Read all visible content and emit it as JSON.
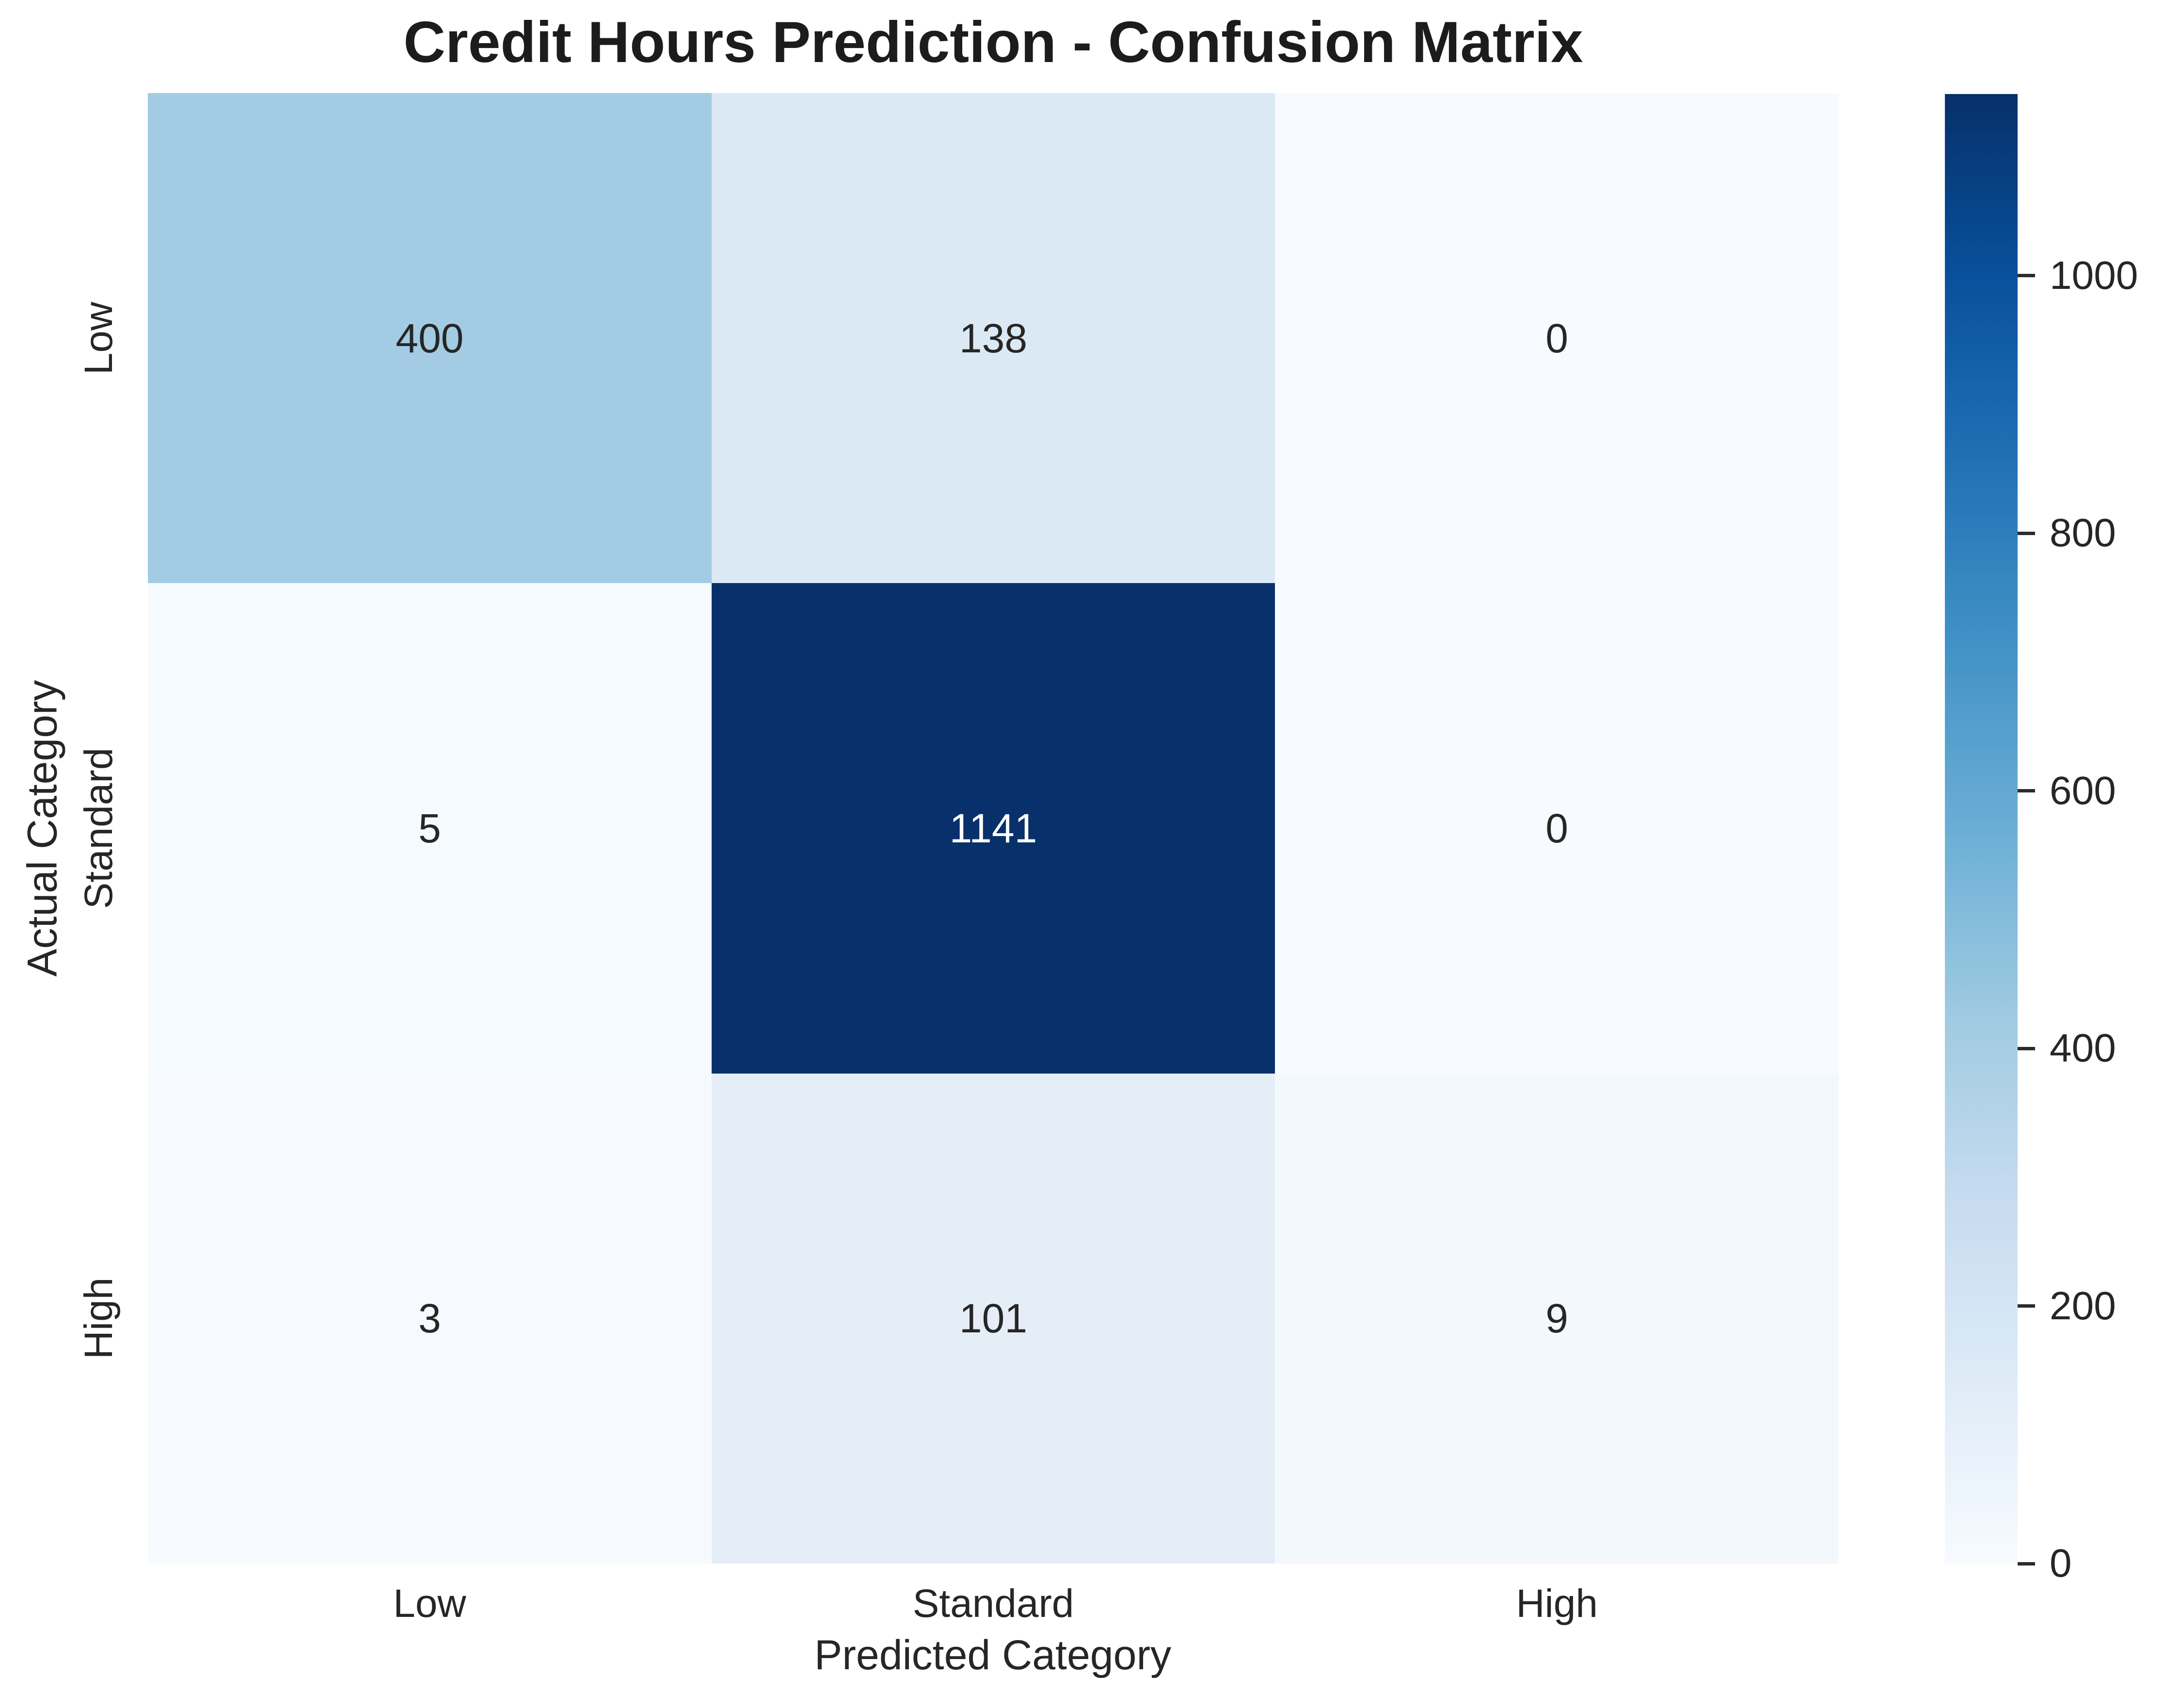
{
  "chart_data": {
    "type": "heatmap",
    "title": "Credit Hours Prediction - Confusion Matrix",
    "xlabel": "Predicted Category",
    "ylabel": "Actual Category",
    "x_categories": [
      "Low",
      "Standard",
      "High"
    ],
    "y_categories": [
      "Low",
      "Standard",
      "High"
    ],
    "matrix": [
      [
        400,
        138,
        0
      ],
      [
        5,
        1141,
        0
      ],
      [
        3,
        101,
        9
      ]
    ],
    "vmin": 0,
    "vmax": 1141,
    "colormap": "Blues",
    "legend_position": "right-colorbar",
    "grid": false,
    "colorbar_ticks": [
      0,
      200,
      400,
      600,
      800,
      1000
    ],
    "cell_colors": [
      [
        "#a3cbe3",
        "#dbe9f5",
        "#f7fbff"
      ],
      [
        "#f5fafe",
        "#08306b",
        "#f7fbff"
      ],
      [
        "#f6fafe",
        "#e5eef7",
        "#f3f8fd"
      ]
    ],
    "cell_text_colors": [
      [
        "#262626",
        "#262626",
        "#262626"
      ],
      [
        "#262626",
        "#ffffff",
        "#262626"
      ],
      [
        "#262626",
        "#262626",
        "#262626"
      ]
    ],
    "colorbar_gradient_top_to_bottom": [
      "#08306b",
      "#08519c",
      "#2171b5",
      "#4292c6",
      "#6baed6",
      "#9ecae1",
      "#c6dbef",
      "#deebf7",
      "#f7fbff"
    ],
    "text_color": "#262626",
    "title_color": "#1c1c1c",
    "background_color": "#ffffff"
  }
}
